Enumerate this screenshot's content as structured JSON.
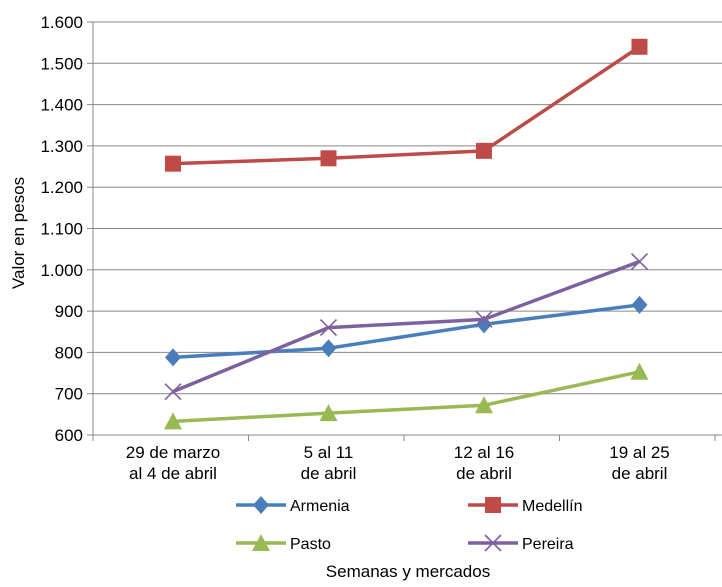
{
  "chart_data": {
    "type": "line",
    "title": "",
    "xlabel": "Semanas y mercados",
    "ylabel": "Valor en pesos",
    "categories": [
      [
        "29 de marzo",
        "al 4 de abril"
      ],
      [
        "5 al 11",
        "de abril"
      ],
      [
        "12 al 16",
        "de abril"
      ],
      [
        "19 al 25",
        "de abril"
      ]
    ],
    "ylim": [
      600,
      1600
    ],
    "yticks": [
      600,
      700,
      800,
      900,
      1000,
      1100,
      1200,
      1300,
      1400,
      1500,
      1600
    ],
    "ytick_labels": [
      "600",
      "700",
      "800",
      "900",
      "1.000",
      "1.100",
      "1.200",
      "1.300",
      "1.400",
      "1.500",
      "1.600"
    ],
    "grid": true,
    "legend_position": "bottom",
    "series": [
      {
        "name": "Armenia",
        "values": [
          788,
          810,
          868,
          915
        ],
        "color": "#4a7ebb",
        "marker": "diamond"
      },
      {
        "name": "Medellín",
        "values": [
          1257,
          1270,
          1288,
          1540
        ],
        "color": "#be4b48",
        "marker": "square"
      },
      {
        "name": "Pasto",
        "values": [
          633,
          653,
          672,
          753
        ],
        "color": "#98b954",
        "marker": "triangle"
      },
      {
        "name": "Pereira",
        "values": [
          705,
          860,
          880,
          1020
        ],
        "color": "#7d60a0",
        "marker": "x"
      }
    ]
  }
}
